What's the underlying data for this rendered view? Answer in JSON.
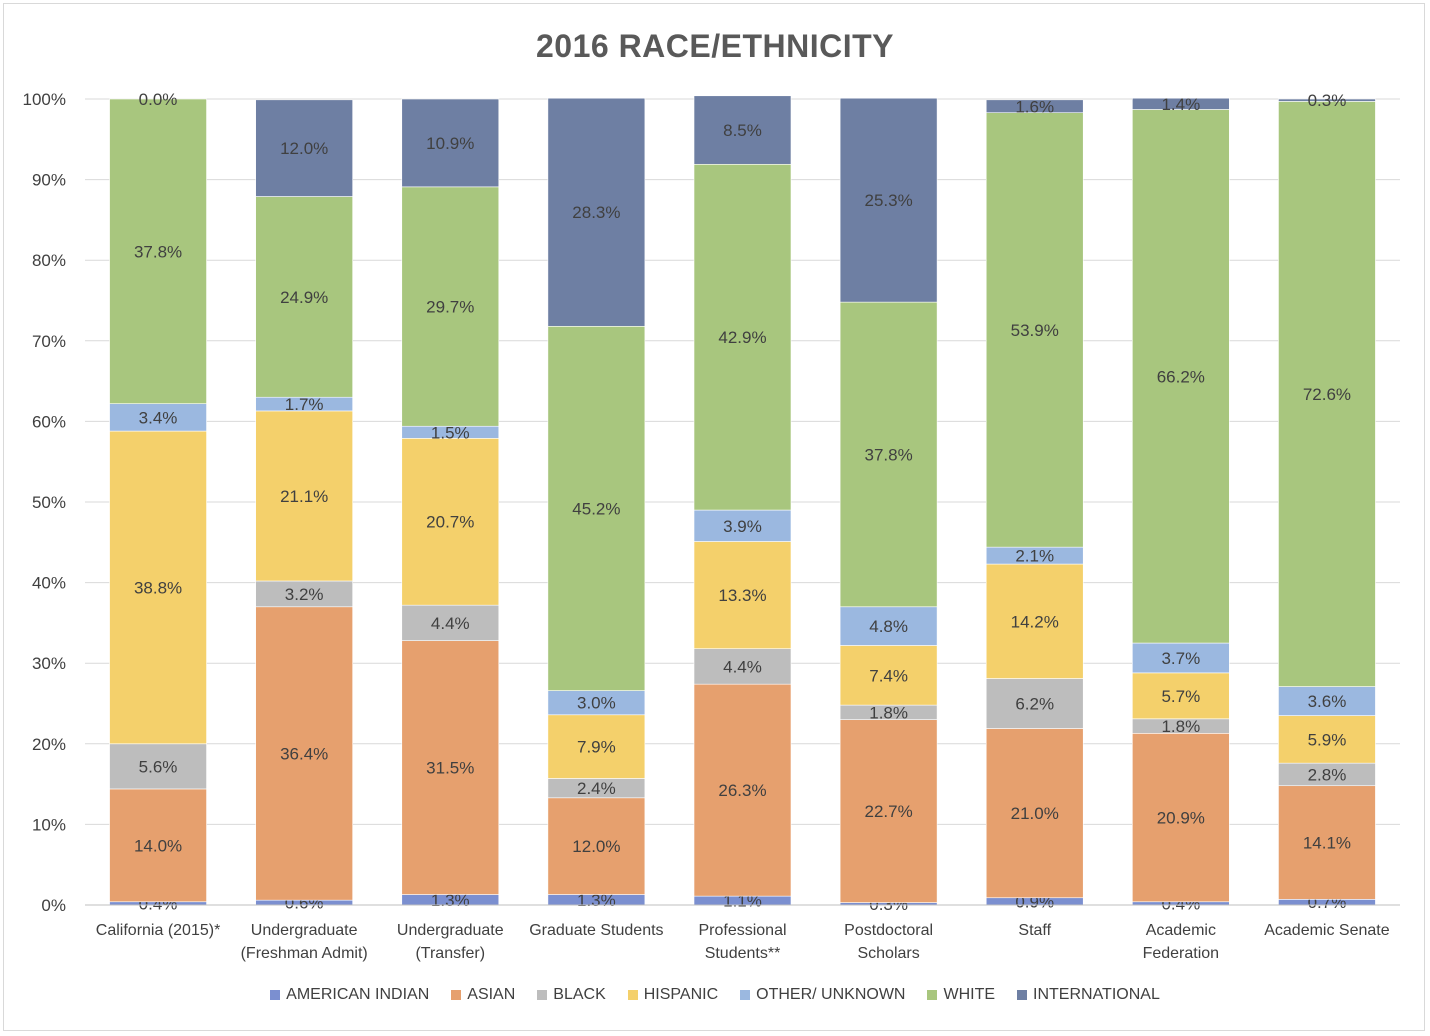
{
  "chart_data": {
    "type": "bar",
    "stacked": true,
    "title": "2016 RACE/ETHNICITY",
    "categories": [
      "California (2015)*",
      "Undergraduate (Freshman Admit)",
      "Undergraduate (Transfer)",
      "Graduate Students",
      "Professional Students**",
      "Postdoctoral Scholars",
      "Staff",
      "Academic Federation",
      "Academic Senate"
    ],
    "category_lines": [
      [
        "California (2015)*"
      ],
      [
        "Undergraduate",
        "(Freshman Admit)"
      ],
      [
        "Undergraduate",
        "(Transfer)"
      ],
      [
        "Graduate Students"
      ],
      [
        "Professional",
        "Students**"
      ],
      [
        "Postdoctoral",
        "Scholars"
      ],
      [
        "Staff"
      ],
      [
        "Academic",
        "Federation"
      ],
      [
        "Academic Senate"
      ]
    ],
    "series": [
      {
        "name": "AMERICAN INDIAN",
        "color": "#7b8fd0",
        "values": [
          0.4,
          0.6,
          1.3,
          1.3,
          1.1,
          0.3,
          0.9,
          0.4,
          0.7
        ]
      },
      {
        "name": "ASIAN",
        "color": "#e6a06e",
        "values": [
          14.0,
          36.4,
          31.5,
          12.0,
          26.3,
          22.7,
          21.0,
          20.9,
          14.1
        ]
      },
      {
        "name": "BLACK",
        "color": "#bdbdbd",
        "values": [
          5.6,
          3.2,
          4.4,
          2.4,
          4.4,
          1.8,
          6.2,
          1.8,
          2.8
        ]
      },
      {
        "name": "HISPANIC",
        "color": "#f4d06b",
        "values": [
          38.8,
          21.1,
          20.7,
          7.9,
          13.3,
          7.4,
          14.2,
          5.7,
          5.9
        ]
      },
      {
        "name": "OTHER/ UNKNOWN",
        "color": "#9bb8e0",
        "values": [
          3.4,
          1.7,
          1.5,
          3.0,
          3.9,
          4.8,
          2.1,
          3.7,
          3.6
        ]
      },
      {
        "name": "WHITE",
        "color": "#a8c67e",
        "values": [
          37.8,
          24.9,
          29.7,
          45.2,
          42.9,
          37.8,
          53.9,
          66.2,
          72.6
        ]
      },
      {
        "name": "INTERNATIONAL",
        "color": "#6e7fa3",
        "values": [
          0.0,
          12.0,
          10.9,
          28.3,
          8.5,
          25.3,
          1.6,
          1.4,
          0.3
        ]
      }
    ],
    "yaxis": {
      "ylim": [
        0,
        100
      ],
      "ticks": [
        0,
        10,
        20,
        30,
        40,
        50,
        60,
        70,
        80,
        90,
        100
      ],
      "tick_labels": [
        "0%",
        "10%",
        "20%",
        "30%",
        "40%",
        "50%",
        "60%",
        "70%",
        "80%",
        "90%",
        "100%"
      ]
    },
    "grid": true,
    "legend_position": "bottom",
    "data_label_suffix": "%"
  }
}
